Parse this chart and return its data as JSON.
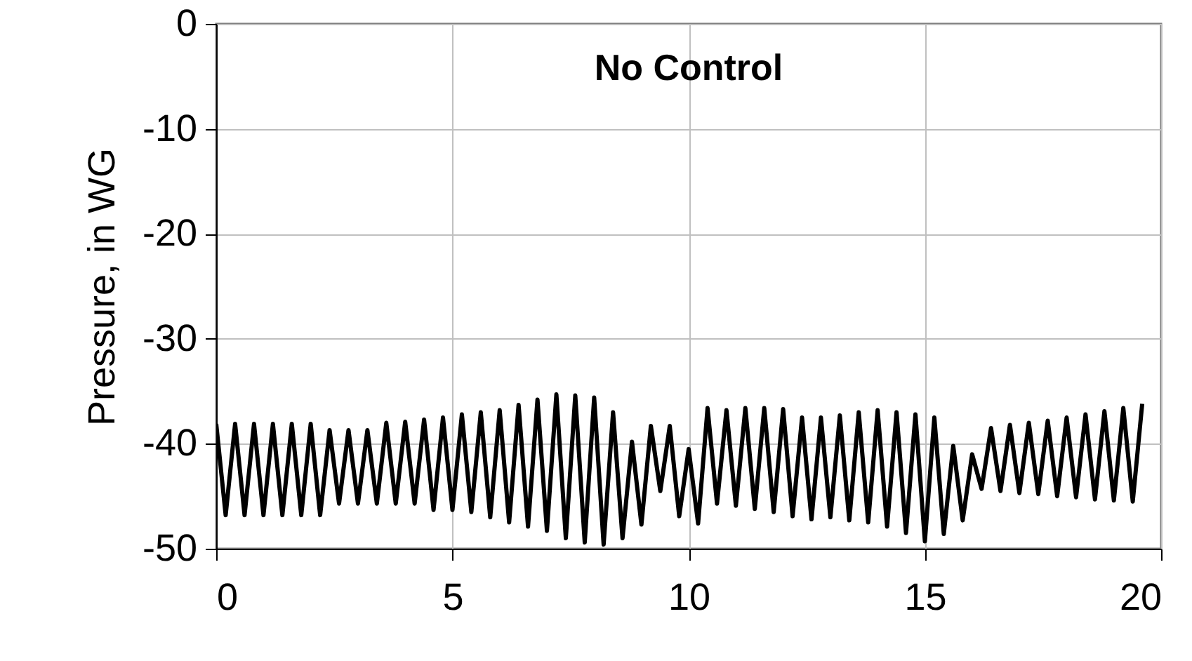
{
  "chart_data": {
    "type": "line",
    "ylabel": "Pressure, in WG",
    "annotations": [
      "No Control"
    ],
    "x": [
      0,
      0.2,
      0.4,
      0.6,
      0.8,
      1.0,
      1.2,
      1.4,
      1.6,
      1.8,
      2.0,
      2.2,
      2.4,
      2.6,
      2.8,
      3.0,
      3.2,
      3.4,
      3.6,
      3.8,
      4.0,
      4.2,
      4.4,
      4.6,
      4.8,
      5.0,
      5.2,
      5.4,
      5.6,
      5.8,
      6.0,
      6.2,
      6.4,
      6.6,
      6.8,
      7.0,
      7.2,
      7.4,
      7.6,
      7.8,
      8.0,
      8.2,
      8.4,
      8.6,
      8.8,
      9.0,
      9.2,
      9.4,
      9.6,
      9.8,
      10.0,
      10.2,
      10.4,
      10.6,
      10.8,
      11.0,
      11.2,
      11.4,
      11.6,
      11.8,
      12.0,
      12.2,
      12.4,
      12.6,
      12.8,
      13.0,
      13.2,
      13.4,
      13.6,
      13.8,
      14.0,
      14.2,
      14.4,
      14.6,
      14.8,
      15.0,
      15.2,
      15.4,
      15.6,
      15.8,
      16.0,
      16.2,
      16.4,
      16.6,
      16.8,
      17.0,
      17.2,
      17.4,
      17.6,
      17.8,
      18.0,
      18.2,
      18.4,
      18.6,
      18.8,
      19.0,
      19.2,
      19.4,
      19.6
    ],
    "series": [
      {
        "color": "#000000",
        "values": [
          -38.1,
          -46.8,
          -38.1,
          -46.8,
          -38.1,
          -46.8,
          -38.1,
          -46.8,
          -38.1,
          -46.8,
          -38.1,
          -46.8,
          -38.7,
          -45.7,
          -38.7,
          -45.7,
          -38.7,
          -45.7,
          -38.0,
          -45.7,
          -37.9,
          -45.7,
          -37.7,
          -46.3,
          -37.5,
          -46.3,
          -37.2,
          -46.5,
          -37.0,
          -47.0,
          -36.8,
          -47.5,
          -36.3,
          -47.9,
          -35.8,
          -48.3,
          -35.3,
          -49.0,
          -35.4,
          -49.4,
          -35.6,
          -49.6,
          -37.0,
          -49.0,
          -39.8,
          -47.7,
          -38.3,
          -44.5,
          -38.3,
          -46.9,
          -40.5,
          -47.6,
          -36.6,
          -45.7,
          -36.8,
          -45.9,
          -36.6,
          -46.2,
          -36.6,
          -46.5,
          -36.7,
          -46.9,
          -37.5,
          -47.2,
          -37.5,
          -47.0,
          -37.3,
          -47.3,
          -37.0,
          -47.5,
          -36.8,
          -47.9,
          -37.0,
          -48.5,
          -37.2,
          -49.3,
          -37.5,
          -48.6,
          -40.2,
          -47.3,
          -41.0,
          -44.3,
          -38.5,
          -44.5,
          -38.2,
          -44.7,
          -38.0,
          -44.8,
          -37.8,
          -45.0,
          -37.5,
          -45.1,
          -37.2,
          -45.3,
          -36.9,
          -45.4,
          -36.6,
          -45.5,
          -36.2
        ]
      }
    ],
    "xlim": [
      0,
      20
    ],
    "xticks": [
      0,
      5,
      10,
      15,
      20
    ],
    "ylim": [
      -50,
      0
    ],
    "yticks": [
      -50,
      -40,
      -30,
      -20,
      -10,
      0
    ],
    "grid": true,
    "marker": "none",
    "line_style": "solid"
  }
}
